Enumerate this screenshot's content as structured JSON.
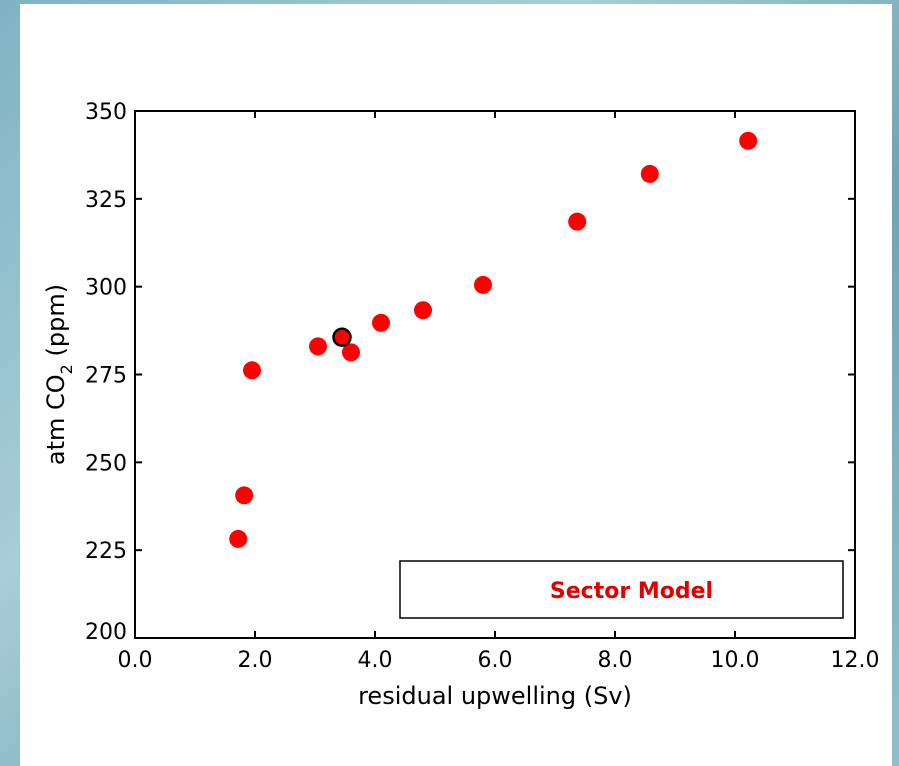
{
  "chart_data": {
    "type": "scatter",
    "xlabel": "residual upwelling (Sv)",
    "ylabel_parts": {
      "pre": "atm CO",
      "sub": "2",
      "post": " (ppm)"
    },
    "xlim": [
      0,
      12
    ],
    "ylim": [
      200,
      350
    ],
    "x_ticks": [
      "0.0",
      "2.0",
      "4.0",
      "6.0",
      "8.0",
      "10.0",
      "12.0"
    ],
    "y_ticks": [
      "200",
      "225",
      "250",
      "275",
      "300",
      "325",
      "350"
    ],
    "legend_label": "Sector Model",
    "legend_placement": "bottom-right",
    "grid": false,
    "colors": {
      "points": "#ff0000",
      "highlight_edge": "#000000",
      "legend_text": "#e00000"
    },
    "points": [
      {
        "x": 1.72,
        "y": 228.2
      },
      {
        "x": 1.82,
        "y": 240.6
      },
      {
        "x": 1.95,
        "y": 276.2
      },
      {
        "x": 3.05,
        "y": 283.0
      },
      {
        "x": 3.6,
        "y": 281.3
      },
      {
        "x": 4.1,
        "y": 289.7
      },
      {
        "x": 4.8,
        "y": 293.3
      },
      {
        "x": 5.8,
        "y": 300.5
      },
      {
        "x": 7.37,
        "y": 318.5
      },
      {
        "x": 8.58,
        "y": 332.1
      },
      {
        "x": 10.22,
        "y": 341.5
      }
    ],
    "highlight_point": {
      "x": 3.45,
      "y": 285.6
    }
  }
}
